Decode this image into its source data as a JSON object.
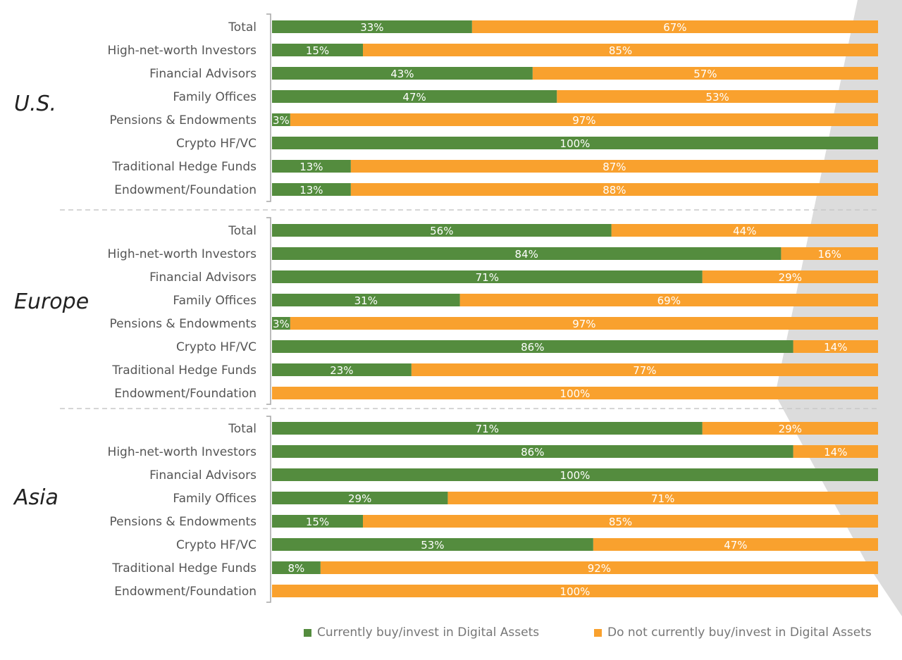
{
  "chart_data": {
    "type": "bar",
    "orientation": "horizontal-stacked-100",
    "colors": {
      "green": "#548c3e",
      "orange": "#f9a12e",
      "shade": "#dcdcdc"
    },
    "legend": [
      {
        "name": "Currently buy/invest in Digital Assets",
        "color": "#548c3e"
      },
      {
        "name": "Do not currently buy/invest in Digital Assets",
        "color": "#f9a12e"
      }
    ],
    "xlim": [
      0,
      100
    ],
    "groups": [
      {
        "name": "U.S.",
        "categories": [
          "Total",
          "High-net-worth Investors",
          "Financial Advisors",
          "Family Offices",
          "Pensions & Endowments",
          "Crypto HF/VC",
          "Traditional Hedge Funds",
          "Endowment/Foundation"
        ],
        "invest": [
          33,
          15,
          43,
          47,
          3,
          100,
          13,
          13
        ],
        "not_invest": [
          67,
          85,
          57,
          53,
          97,
          0,
          87,
          88
        ]
      },
      {
        "name": "Europe",
        "categories": [
          "Total",
          "High-net-worth Investors",
          "Financial Advisors",
          "Family Offices",
          "Pensions & Endowments",
          "Crypto HF/VC",
          "Traditional Hedge Funds",
          "Endowment/Foundation"
        ],
        "invest": [
          56,
          84,
          71,
          31,
          3,
          86,
          23,
          0
        ],
        "not_invest": [
          44,
          16,
          29,
          69,
          97,
          14,
          77,
          100
        ]
      },
      {
        "name": "Asia",
        "categories": [
          "Total",
          "High-net-worth Investors",
          "Financial Advisors",
          "Family Offices",
          "Pensions & Endowments",
          "Crypto HF/VC",
          "Traditional Hedge Funds",
          "Endowment/Foundation"
        ],
        "invest": [
          71,
          86,
          100,
          29,
          15,
          53,
          8,
          0
        ],
        "not_invest": [
          29,
          14,
          0,
          71,
          85,
          47,
          92,
          100
        ]
      }
    ]
  }
}
